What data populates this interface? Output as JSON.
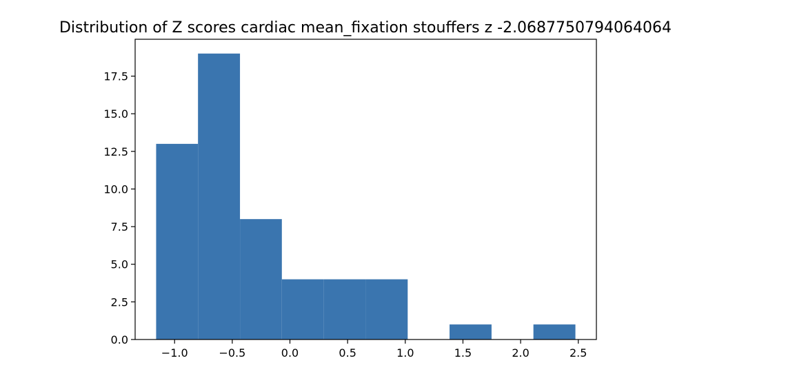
{
  "chart_data": {
    "type": "bar",
    "title": "Distribution of Z scores cardiac mean_fixation stouffers z -2.0687750794064064",
    "xlabel": "",
    "ylabel": "",
    "bins": [
      {
        "start": -1.16,
        "end": -0.797,
        "count": 13
      },
      {
        "start": -0.797,
        "end": -0.433,
        "count": 19
      },
      {
        "start": -0.433,
        "end": -0.07,
        "count": 8
      },
      {
        "start": -0.07,
        "end": 0.294,
        "count": 4
      },
      {
        "start": 0.294,
        "end": 0.657,
        "count": 4
      },
      {
        "start": 0.657,
        "end": 1.021,
        "count": 4
      },
      {
        "start": 1.021,
        "end": 1.384,
        "count": 0
      },
      {
        "start": 1.384,
        "end": 1.748,
        "count": 1
      },
      {
        "start": 1.748,
        "end": 2.111,
        "count": 0
      },
      {
        "start": 2.111,
        "end": 2.475,
        "count": 1
      }
    ],
    "xlim": [
      -1.342,
      2.657
    ],
    "ylim": [
      0,
      19.95
    ],
    "xticks": [
      -1.0,
      -0.5,
      0.0,
      0.5,
      1.0,
      1.5,
      2.0,
      2.5
    ],
    "xtick_labels": [
      "−1.0",
      "−0.5",
      "0.0",
      "0.5",
      "1.0",
      "1.5",
      "2.0",
      "2.5"
    ],
    "yticks": [
      0.0,
      2.5,
      5.0,
      7.5,
      10.0,
      12.5,
      15.0,
      17.5
    ],
    "ytick_labels": [
      "0.0",
      "2.5",
      "5.0",
      "7.5",
      "10.0",
      "12.5",
      "15.0",
      "17.5"
    ],
    "bar_color": "#3a75af",
    "grid": false,
    "legend": null
  }
}
